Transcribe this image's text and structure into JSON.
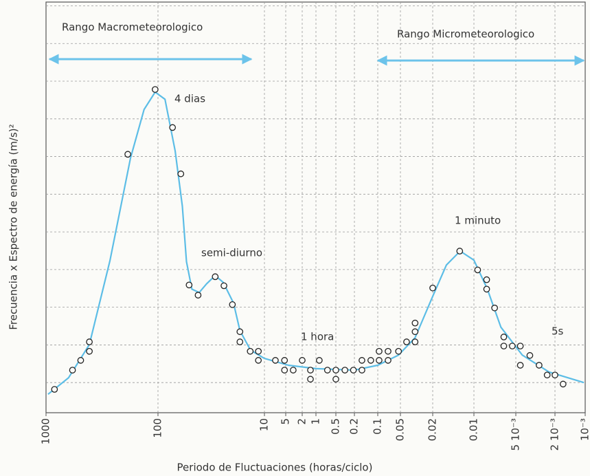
{
  "chart_data": {
    "type": "line",
    "xlabel": "Periodo de Fluctuaciones (horas/ciclo)",
    "ylabel": "Frecuencia x Espectro de energía (m/s)²",
    "annotations": [
      "Rango Macrometeorologico",
      "Rango Micrometeorologico",
      "4 dias",
      "semi-diurno",
      "1 hora",
      "1 minuto",
      "5s"
    ],
    "xscale": "log",
    "xlim": [
      1000,
      0.001
    ],
    "xticks": [
      1000,
      100,
      10,
      5,
      2,
      1,
      0.5,
      0.2,
      0.1,
      0.05,
      0.02,
      0.01,
      {
        "value": 0.005,
        "label": "5 10⁻³"
      },
      {
        "value": 0.002,
        "label": "2 10⁻³"
      },
      {
        "value": 0.001,
        "label": "10⁻³"
      }
    ],
    "ylim": [
      0.2,
      11.1
    ],
    "grid": true,
    "series": [
      {
        "mode": "line",
        "color": "#5cbde6",
        "x": [
          960,
          628,
          410,
          269,
          176,
          133,
          106,
          86,
          69,
          59,
          54,
          48,
          41,
          35,
          29,
          24.4,
          19.5,
          17,
          13.5,
          10,
          4.3,
          1,
          0.2,
          0.1,
          0.053,
          0.033,
          0.02,
          0.0159,
          0.0126,
          0.01,
          0.008,
          0.0064,
          0.0043,
          0.0023,
          0.00103
        ],
        "values": [
          0.69,
          1.13,
          2.01,
          4.23,
          6.96,
          8.25,
          8.71,
          8.52,
          7.15,
          5.68,
          4.21,
          3.48,
          3.39,
          3.62,
          3.84,
          3.66,
          3.11,
          2.38,
          1.86,
          1.64,
          1.46,
          1.37,
          1.33,
          1.46,
          1.73,
          2.19,
          3.29,
          4.12,
          4.49,
          4.25,
          3.48,
          2.47,
          1.73,
          1.28,
          1.0
        ]
      },
      {
        "mode": "markers",
        "color": "#222222",
        "x": [
          840,
          580,
          490,
          410,
          410,
          186,
          106,
          73,
          61,
          51,
          42,
          29,
          24,
          20,
          17,
          17,
          13.6,
          11.4,
          11.4,
          7.0,
          5.2,
          5.2,
          3.3,
          2,
          1.32,
          1.32,
          0.89,
          0.67,
          0.5,
          0.5,
          0.32,
          0.21,
          0.16,
          0.16,
          0.123,
          0.096,
          0.096,
          0.073,
          0.073,
          0.053,
          0.042,
          0.033,
          0.033,
          0.033,
          0.02,
          0.0127,
          0.0094,
          0.0081,
          0.0081,
          0.0071,
          0.0061,
          0.0061,
          0.0053,
          0.0045,
          0.0045,
          0.0036,
          0.0029,
          0.0024,
          0.002,
          0.00166
        ],
        "values": [
          0.82,
          1.33,
          1.59,
          1.83,
          2.08,
          7.06,
          8.78,
          7.77,
          6.54,
          3.59,
          3.32,
          3.81,
          3.57,
          3.07,
          2.35,
          2.08,
          1.83,
          1.83,
          1.59,
          1.59,
          1.59,
          1.33,
          1.33,
          1.59,
          1.33,
          1.09,
          1.59,
          1.33,
          1.33,
          1.09,
          1.33,
          1.33,
          1.33,
          1.59,
          1.59,
          1.59,
          1.83,
          1.83,
          1.59,
          1.83,
          2.08,
          2.08,
          2.35,
          2.58,
          3.51,
          4.49,
          3.99,
          3.73,
          3.48,
          2.98,
          2.21,
          1.97,
          1.97,
          1.97,
          1.46,
          1.72,
          1.46,
          1.2,
          1.2,
          0.96
        ]
      }
    ]
  }
}
